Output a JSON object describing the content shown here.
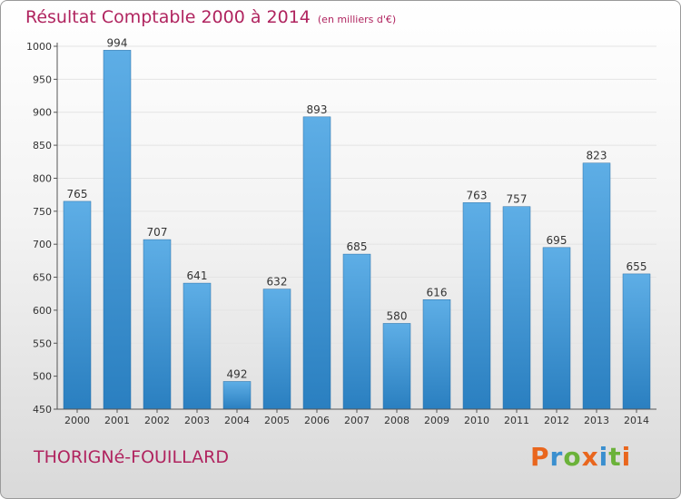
{
  "title": "Résultat Comptable 2000 à 2014",
  "subtitle": "(en milliers d'€)",
  "commune": "THORIGNé-FOUILLARD",
  "logo": {
    "letters": [
      "P",
      "r",
      "o",
      "x",
      "i",
      "t",
      "i"
    ],
    "colors": [
      "#e9661d",
      "#3a8fcf",
      "#6bb23a",
      "#e9661d",
      "#3a8fcf",
      "#6bb23a",
      "#e9661d"
    ]
  },
  "colors": {
    "bar_light": "#5eaee6",
    "bar_dark": "#2a7fc0",
    "title": "#b0245f"
  },
  "chart_data": {
    "type": "bar",
    "title": "Résultat Comptable 2000 à 2014",
    "subtitle": "(en milliers d'€)",
    "xlabel": "",
    "ylabel": "",
    "categories": [
      "2000",
      "2001",
      "2002",
      "2003",
      "2004",
      "2005",
      "2006",
      "2007",
      "2008",
      "2009",
      "2010",
      "2011",
      "2012",
      "2013",
      "2014"
    ],
    "values": [
      765,
      994,
      707,
      641,
      492,
      632,
      893,
      685,
      580,
      616,
      763,
      757,
      695,
      823,
      655
    ],
    "ylim": [
      450,
      1000
    ],
    "yticks": [
      450,
      500,
      550,
      600,
      650,
      700,
      750,
      800,
      850,
      900,
      950,
      1000
    ],
    "grid": true,
    "legend": "none"
  }
}
